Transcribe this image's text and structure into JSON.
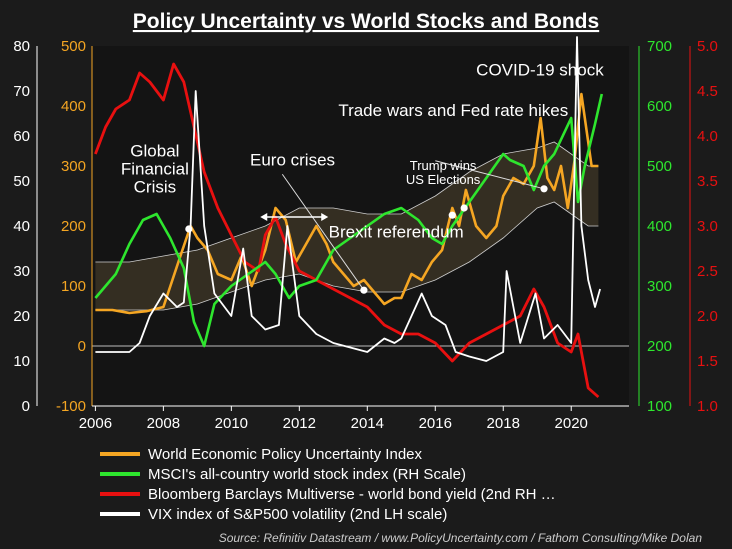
{
  "chart_data": {
    "type": "line",
    "title": "Policy Uncertainty vs World Stocks and Bonds",
    "source": "Source: Refinitiv Datastream / www.PolicyUncertainty.com / Fathom Consulting/Mike Dolan",
    "x_ticks": [
      "2006",
      "2008",
      "2010",
      "2012",
      "2014",
      "2016",
      "2018",
      "2020"
    ],
    "x_range": [
      2005.9,
      2021.7
    ],
    "axes": {
      "vix_left_outer": {
        "range": [
          0,
          80
        ],
        "ticks": [
          "0",
          "10",
          "20",
          "30",
          "40",
          "50",
          "60",
          "70",
          "80"
        ],
        "color": "#ffffff"
      },
      "epu_left_inner": {
        "range": [
          -100,
          500
        ],
        "ticks": [
          "-100",
          "0",
          "100",
          "200",
          "300",
          "400",
          "500"
        ],
        "color": "#f5a623"
      },
      "msci_right_inner": {
        "range": [
          100,
          700
        ],
        "ticks": [
          "100",
          "200",
          "300",
          "400",
          "500",
          "600",
          "700"
        ],
        "color": "#2ee62e"
      },
      "yield_right_outer": {
        "range": [
          1.0,
          5.0
        ],
        "ticks": [
          "1.0",
          "1.5",
          "2.0",
          "2.5",
          "3.0",
          "3.5",
          "4.0",
          "4.5",
          "5.0"
        ],
        "color": "#e81010"
      }
    },
    "series": [
      {
        "name": "World Economic Policy Uncertainty Index",
        "axis": "epu_left_inner",
        "color": "#f5a623",
        "x": [
          2006.0,
          2006.5,
          2007.0,
          2007.5,
          2008.0,
          2008.5,
          2008.8,
          2009.0,
          2009.3,
          2009.6,
          2010.0,
          2010.3,
          2010.6,
          2011.0,
          2011.3,
          2011.6,
          2011.9,
          2012.2,
          2012.5,
          2012.8,
          2013.0,
          2013.3,
          2013.6,
          2013.9,
          2014.2,
          2014.5,
          2014.8,
          2015.0,
          2015.3,
          2015.6,
          2015.9,
          2016.2,
          2016.5,
          2016.7,
          2016.9,
          2017.2,
          2017.5,
          2017.8,
          2018.0,
          2018.3,
          2018.6,
          2018.9,
          2019.1,
          2019.3,
          2019.5,
          2019.7,
          2019.9,
          2020.1,
          2020.3,
          2020.45,
          2020.6,
          2020.8
        ],
        "values": [
          60,
          60,
          55,
          58,
          65,
          150,
          200,
          180,
          160,
          120,
          110,
          150,
          100,
          160,
          230,
          210,
          140,
          170,
          200,
          170,
          140,
          120,
          100,
          110,
          90,
          70,
          80,
          80,
          120,
          110,
          140,
          160,
          230,
          200,
          260,
          200,
          180,
          200,
          250,
          280,
          270,
          300,
          380,
          280,
          260,
          300,
          230,
          310,
          420,
          360,
          300,
          300
        ]
      },
      {
        "name": "MSCI's all-country world stock index (RH Scale)",
        "axis": "msci_right_inner",
        "color": "#2ee62e",
        "x": [
          2006.0,
          2006.3,
          2006.6,
          2007.0,
          2007.4,
          2007.8,
          2008.2,
          2008.6,
          2008.9,
          2009.2,
          2009.5,
          2010.0,
          2010.5,
          2011.0,
          2011.3,
          2011.7,
          2012.0,
          2012.5,
          2013.0,
          2013.5,
          2014.0,
          2014.5,
          2015.0,
          2015.5,
          2015.9,
          2016.2,
          2016.5,
          2017.0,
          2017.5,
          2018.0,
          2018.2,
          2018.6,
          2018.9,
          2019.2,
          2019.5,
          2020.0,
          2020.2,
          2020.4,
          2020.7,
          2020.9
        ],
        "values": [
          280,
          300,
          320,
          370,
          410,
          420,
          380,
          330,
          240,
          200,
          270,
          300,
          320,
          340,
          320,
          280,
          300,
          310,
          360,
          380,
          400,
          420,
          430,
          410,
          380,
          370,
          400,
          440,
          480,
          520,
          510,
          500,
          460,
          500,
          520,
          580,
          440,
          500,
          570,
          620
        ]
      },
      {
        "name": "Bloomberg Barclays Multiverse - world bond yield (2nd RH …",
        "axis": "yield_right_outer",
        "color": "#e81010",
        "x": [
          2006.0,
          2006.3,
          2006.6,
          2007.0,
          2007.3,
          2007.6,
          2008.0,
          2008.3,
          2008.6,
          2008.9,
          2009.2,
          2009.6,
          2010.0,
          2010.4,
          2010.8,
          2011.0,
          2011.3,
          2011.6,
          2012.0,
          2012.5,
          2013.0,
          2013.5,
          2014.0,
          2014.5,
          2015.0,
          2015.5,
          2016.0,
          2016.5,
          2017.0,
          2017.5,
          2018.0,
          2018.5,
          2018.9,
          2019.2,
          2019.6,
          2020.0,
          2020.2,
          2020.5,
          2020.8
        ],
        "values": [
          3.8,
          4.1,
          4.3,
          4.4,
          4.7,
          4.6,
          4.4,
          4.8,
          4.6,
          4.1,
          3.6,
          3.2,
          2.9,
          2.6,
          2.5,
          2.9,
          3.1,
          2.8,
          2.5,
          2.4,
          2.3,
          2.2,
          2.1,
          1.9,
          1.8,
          1.8,
          1.7,
          1.5,
          1.7,
          1.8,
          1.9,
          2.0,
          2.3,
          2.1,
          1.7,
          1.6,
          1.8,
          1.2,
          1.1
        ]
      },
      {
        "name": "VIX index of S&P500 volatility (2nd LH scale)",
        "axis": "vix_left_outer",
        "color": "#ffffff",
        "x": [
          2006.0,
          2006.5,
          2007.0,
          2007.3,
          2007.6,
          2008.0,
          2008.4,
          2008.6,
          2008.8,
          2008.95,
          2009.2,
          2009.5,
          2010.0,
          2010.35,
          2010.6,
          2011.0,
          2011.4,
          2011.65,
          2012.0,
          2012.5,
          2013.0,
          2013.5,
          2014.0,
          2014.5,
          2014.8,
          2015.0,
          2015.6,
          2015.9,
          2016.3,
          2016.6,
          2017.0,
          2017.5,
          2018.0,
          2018.1,
          2018.5,
          2018.95,
          2019.2,
          2019.6,
          2020.0,
          2020.17,
          2020.3,
          2020.5,
          2020.7,
          2020.85
        ],
        "values": [
          12,
          12,
          12,
          14,
          20,
          25,
          22,
          23,
          40,
          70,
          40,
          25,
          20,
          35,
          20,
          17,
          18,
          40,
          20,
          16,
          14,
          13,
          12,
          15,
          14,
          15,
          25,
          20,
          18,
          12,
          11,
          10,
          12,
          30,
          14,
          25,
          15,
          18,
          14,
          82,
          40,
          28,
          22,
          26
        ]
      }
    ],
    "band": {
      "axis": "epu_left_inner",
      "x": [
        2006.0,
        2007.0,
        2008.0,
        2009.0,
        2010.0,
        2011.0,
        2012.0,
        2013.0,
        2014.0,
        2015.0,
        2016.0,
        2017.0,
        2018.0,
        2019.0,
        2019.5,
        2020.0,
        2020.5,
        2020.8
      ],
      "upper": [
        140,
        140,
        150,
        160,
        180,
        200,
        230,
        230,
        220,
        220,
        250,
        290,
        320,
        330,
        340,
        320,
        300,
        300
      ],
      "lower": [
        60,
        60,
        60,
        70,
        90,
        110,
        120,
        100,
        90,
        90,
        110,
        140,
        180,
        230,
        240,
        220,
        200,
        200
      ]
    },
    "annotations": [
      {
        "text": "COVID-19 shock",
        "x": 2019.08,
        "y_vix": 73.5,
        "size": 17
      },
      {
        "text": "Trade wars and Fed rate hikes",
        "x": 2016.53,
        "y_vix": 64.5,
        "size": 17
      },
      {
        "text": "Global",
        "x": 2007.75,
        "y_vix": 55.5,
        "size": 17
      },
      {
        "text": "Financial",
        "x": 2007.75,
        "y_vix": 51.5,
        "size": 17
      },
      {
        "text": "Crisis",
        "x": 2007.75,
        "y_vix": 47.5,
        "size": 17
      },
      {
        "text": "Euro crises",
        "x": 2011.8,
        "y_vix": 53.5,
        "size": 17
      },
      {
        "text": "Trump wins",
        "x": 2016.23,
        "y_vix": 52.5,
        "size": 13
      },
      {
        "text": "US Elections",
        "x": 2016.23,
        "y_vix": 49.3,
        "size": 13
      },
      {
        "text": "Brexit referendum",
        "x": 2014.85,
        "y_vix": 37.5,
        "size": 17
      }
    ],
    "markers_epu": [
      {
        "x": 2008.75,
        "y": 195
      },
      {
        "x": 2013.9,
        "y": 93
      },
      {
        "x": 2016.5,
        "y": 218
      },
      {
        "x": 2016.85,
        "y": 230
      },
      {
        "x": 2019.2,
        "y": 262
      }
    ],
    "arrow_euro": {
      "x1": 2010.85,
      "x2": 2012.85,
      "y_epu": 215
    },
    "pointer_lines": [
      {
        "x1": 2016.0,
        "y1_vix": 54.5,
        "x2": 2019.2,
        "y2_epu": 262
      },
      {
        "x1": 2011.5,
        "y1_vix": 51.5,
        "x2": 2013.9,
        "y2_epu": 93
      }
    ],
    "legend": [
      "World Economic Policy Uncertainty Index",
      "MSCI's all-country world stock index (RH Scale)",
      "Bloomberg Barclays Multiverse - world bond yield (2nd RH …",
      "VIX index of S&P500 volatility (2nd LH scale)"
    ]
  }
}
